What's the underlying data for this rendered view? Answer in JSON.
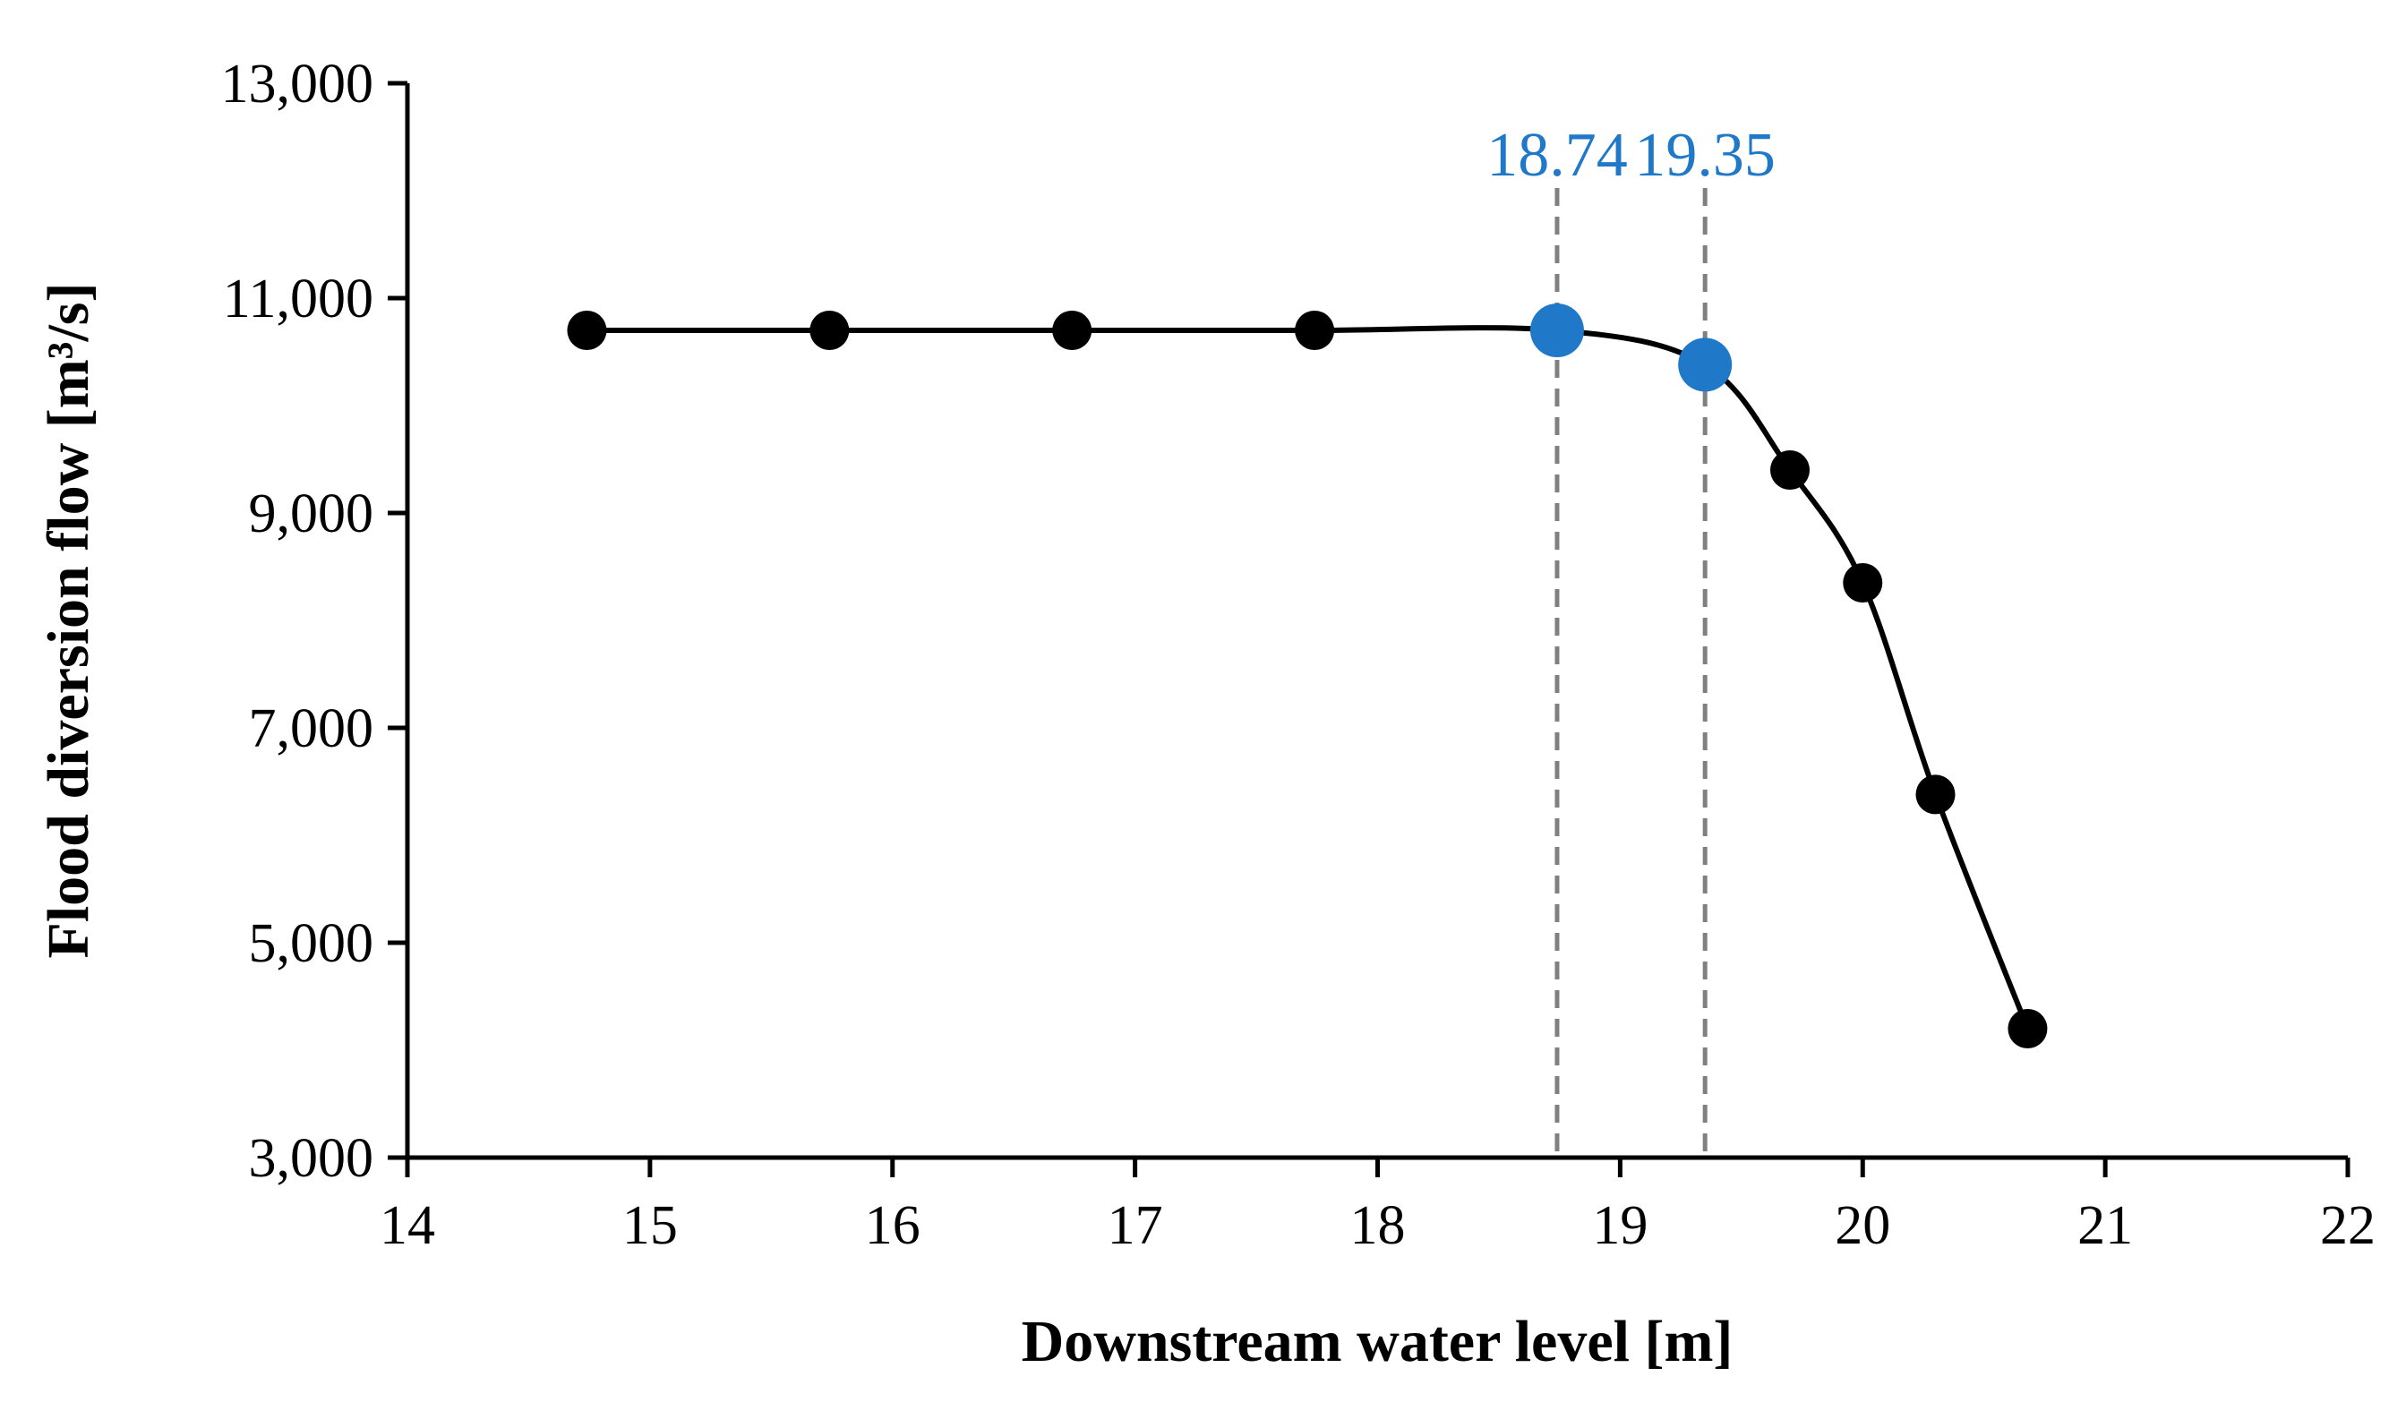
{
  "chart_data": {
    "type": "line",
    "title": "",
    "xlabel": "Downstream water level [m]",
    "ylabel": "Flood diversion flow [m³/s]",
    "xlim": [
      14,
      22
    ],
    "ylim": [
      3000,
      13000
    ],
    "x_ticks": [
      14,
      15,
      16,
      17,
      18,
      19,
      20,
      21,
      22
    ],
    "y_ticks": [
      3000,
      5000,
      7000,
      9000,
      11000,
      13000
    ],
    "x_tick_labels": [
      "14",
      "15",
      "16",
      "17",
      "18",
      "19",
      "20",
      "21",
      "22"
    ],
    "y_tick_labels": [
      "3,000",
      "5,000",
      "7,000",
      "9,000",
      "11,000",
      "13,000"
    ],
    "grid": false,
    "series": [
      {
        "name": "Flood diversion flow",
        "x": [
          14.74,
          15.74,
          16.74,
          17.74,
          18.74,
          19.35,
          19.7,
          20.0,
          20.3,
          20.68
        ],
        "y": [
          10700,
          10700,
          10700,
          10700,
          10700,
          10380,
          9400,
          8350,
          6380,
          4200
        ],
        "highlight": [
          false,
          false,
          false,
          false,
          true,
          true,
          false,
          false,
          false,
          false
        ]
      }
    ],
    "reference_lines": [
      {
        "x": 18.74,
        "label": "18.74"
      },
      {
        "x": 19.35,
        "label": "19.35"
      }
    ],
    "colors": {
      "line": "#000000",
      "marker": "#000000",
      "highlight": "#1f78c8",
      "reference_line": "#808080",
      "annotation": "#1f78c8"
    }
  }
}
